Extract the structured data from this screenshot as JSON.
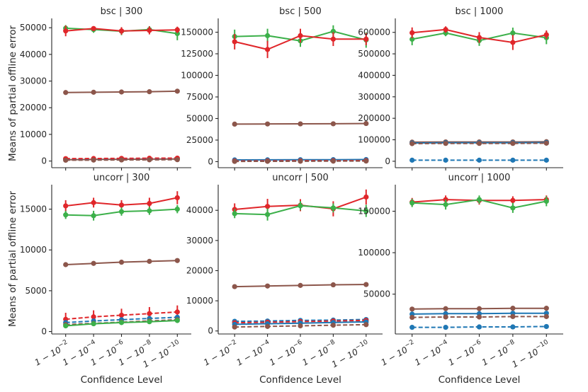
{
  "figure": {
    "ylabel": "Means of partial offline error",
    "xlabel": "Confidence Level"
  },
  "colors": {
    "blue": "#1f77b4",
    "green": "#3cb04a",
    "red": "#e0262a",
    "brown": "#8c564b",
    "axis": "#262626"
  },
  "x_tick_labels": [
    {
      "base": "1 − 10",
      "exp": "−2"
    },
    {
      "base": "1 − 10",
      "exp": "−4"
    },
    {
      "base": "1 − 10",
      "exp": "−6"
    },
    {
      "base": "1 − 10",
      "exp": "−8"
    },
    {
      "base": "1 − 10",
      "exp": "−10"
    }
  ],
  "chart_data": [
    {
      "type": "line",
      "title": "bsc | 300",
      "ylim": [
        -2500,
        53500
      ],
      "yticks": [
        0,
        10000,
        20000,
        30000,
        40000,
        50000
      ],
      "series": [
        {
          "color": "green",
          "style": "solid",
          "values": [
            49800,
            49300,
            48700,
            49300,
            47800
          ],
          "err": [
            1200,
            1200,
            1500,
            1300,
            2500
          ]
        },
        {
          "color": "red",
          "style": "solid",
          "values": [
            48800,
            49700,
            48800,
            49000,
            49200
          ],
          "err": [
            2000,
            900,
            1400,
            1500,
            1200
          ]
        },
        {
          "color": "brown",
          "style": "solid",
          "values": [
            25700,
            25800,
            25900,
            26000,
            26200
          ],
          "err": [
            0,
            0,
            0,
            0,
            0
          ]
        },
        {
          "color": "brown",
          "style": "solid",
          "values": [
            500,
            600,
            650,
            700,
            750
          ],
          "err": [
            0,
            0,
            0,
            0,
            0
          ]
        },
        {
          "color": "blue",
          "style": "dashed",
          "values": [
            700,
            750,
            800,
            850,
            900
          ],
          "err": [
            0,
            0,
            0,
            0,
            0
          ]
        },
        {
          "color": "red",
          "style": "dashed",
          "values": [
            900,
            950,
            1000,
            1050,
            1100
          ],
          "err": [
            0,
            0,
            0,
            0,
            0
          ]
        },
        {
          "color": "brown",
          "style": "dashed",
          "values": [
            300,
            350,
            400,
            450,
            500
          ],
          "err": [
            0,
            0,
            0,
            0,
            0
          ]
        }
      ]
    },
    {
      "type": "line",
      "title": "bsc | 500",
      "ylim": [
        -7000,
        166000
      ],
      "yticks": [
        0,
        25000,
        50000,
        75000,
        100000,
        125000,
        150000
      ],
      "series": [
        {
          "color": "green",
          "style": "solid",
          "values": [
            145000,
            146000,
            140000,
            151000,
            141000
          ],
          "err": [
            8000,
            8000,
            7000,
            7000,
            9000
          ]
        },
        {
          "color": "red",
          "style": "solid",
          "values": [
            139000,
            130000,
            146000,
            142000,
            142000
          ],
          "err": [
            9000,
            10000,
            8000,
            8000,
            7000
          ]
        },
        {
          "color": "brown",
          "style": "solid",
          "values": [
            43500,
            43700,
            43800,
            43900,
            44200
          ],
          "err": [
            0,
            0,
            0,
            0,
            0
          ]
        },
        {
          "color": "blue",
          "style": "solid",
          "values": [
            2000,
            2100,
            2200,
            2300,
            2400
          ],
          "err": [
            0,
            0,
            0,
            0,
            0
          ]
        },
        {
          "color": "blue",
          "style": "dashed",
          "values": [
            1200,
            1300,
            1400,
            1500,
            1600
          ],
          "err": [
            0,
            0,
            0,
            0,
            0
          ]
        },
        {
          "color": "red",
          "style": "dashed",
          "values": [
            800,
            900,
            1000,
            1100,
            1200
          ],
          "err": [
            0,
            0,
            0,
            0,
            0
          ]
        },
        {
          "color": "brown",
          "style": "dashed",
          "values": [
            300,
            400,
            500,
            600,
            700
          ],
          "err": [
            0,
            0,
            0,
            0,
            0
          ]
        }
      ]
    },
    {
      "type": "line",
      "title": "bsc | 1000",
      "ylim": [
        -30000,
        665000
      ],
      "yticks": [
        0,
        100000,
        200000,
        300000,
        400000,
        500000,
        600000
      ],
      "series": [
        {
          "color": "green",
          "style": "solid",
          "values": [
            568000,
            597000,
            562000,
            597000,
            575000
          ],
          "err": [
            28000,
            15000,
            25000,
            25000,
            30000
          ]
        },
        {
          "color": "red",
          "style": "solid",
          "values": [
            598000,
            613000,
            576000,
            553000,
            589000
          ],
          "err": [
            25000,
            15000,
            25000,
            35000,
            20000
          ]
        },
        {
          "color": "brown",
          "style": "solid",
          "values": [
            89000,
            90000,
            90000,
            90000,
            91000
          ],
          "err": [
            0,
            0,
            0,
            0,
            0
          ]
        },
        {
          "color": "blue",
          "style": "solid",
          "values": [
            85000,
            86000,
            86000,
            86000,
            87000
          ],
          "err": [
            0,
            0,
            0,
            0,
            0
          ]
        },
        {
          "color": "brown",
          "style": "dashed",
          "values": [
            82000,
            83000,
            83000,
            83000,
            84000
          ],
          "err": [
            0,
            0,
            0,
            0,
            0
          ]
        },
        {
          "color": "blue",
          "style": "dashed",
          "values": [
            5000,
            5000,
            5000,
            5000,
            5000
          ],
          "err": [
            0,
            0,
            0,
            0,
            0
          ]
        }
      ]
    },
    {
      "type": "line",
      "title": "uncorr | 300",
      "ylim": [
        -300,
        18000
      ],
      "yticks": [
        0,
        5000,
        10000,
        15000
      ],
      "series": [
        {
          "color": "red",
          "style": "solid",
          "values": [
            15400,
            15800,
            15500,
            15700,
            16400
          ],
          "err": [
            700,
            600,
            600,
            700,
            800
          ]
        },
        {
          "color": "green",
          "style": "solid",
          "values": [
            14300,
            14200,
            14700,
            14800,
            15000
          ],
          "err": [
            500,
            600,
            500,
            500,
            500
          ]
        },
        {
          "color": "brown",
          "style": "solid",
          "values": [
            8200,
            8350,
            8500,
            8600,
            8700
          ],
          "err": [
            0,
            0,
            0,
            0,
            0
          ]
        },
        {
          "color": "red",
          "style": "dashed",
          "values": [
            1500,
            1800,
            2000,
            2200,
            2400
          ],
          "err": [
            800,
            800,
            800,
            800,
            800
          ]
        },
        {
          "color": "blue",
          "style": "dashed",
          "values": [
            1100,
            1300,
            1450,
            1600,
            1750
          ],
          "err": [
            0,
            0,
            0,
            0,
            0
          ]
        },
        {
          "color": "brown",
          "style": "dashed",
          "values": [
            850,
            1000,
            1150,
            1300,
            1450
          ],
          "err": [
            0,
            0,
            0,
            0,
            0
          ]
        },
        {
          "color": "green",
          "style": "solid",
          "values": [
            700,
            950,
            1100,
            1200,
            1350
          ],
          "err": [
            0,
            0,
            0,
            0,
            0
          ]
        }
      ]
    },
    {
      "type": "line",
      "title": "uncorr | 500",
      "ylim": [
        -1000,
        48500
      ],
      "yticks": [
        0,
        10000,
        20000,
        30000,
        40000
      ],
      "series": [
        {
          "color": "red",
          "style": "solid",
          "values": [
            40300,
            41300,
            41700,
            40500,
            44400
          ],
          "err": [
            2000,
            2500,
            2000,
            2500,
            2500
          ]
        },
        {
          "color": "green",
          "style": "solid",
          "values": [
            38900,
            38600,
            41500,
            40800,
            39800
          ],
          "err": [
            1500,
            2000,
            1500,
            1500,
            2000
          ]
        },
        {
          "color": "brown",
          "style": "solid",
          "values": [
            14700,
            14900,
            15100,
            15300,
            15400
          ],
          "err": [
            0,
            0,
            0,
            0,
            0
          ]
        },
        {
          "color": "blue",
          "style": "dashed",
          "values": [
            3200,
            3300,
            3500,
            3600,
            3800
          ],
          "err": [
            0,
            0,
            0,
            0,
            0
          ]
        },
        {
          "color": "red",
          "style": "dashed",
          "values": [
            2700,
            2900,
            3100,
            3300,
            3500
          ],
          "err": [
            700,
            700,
            700,
            700,
            700
          ]
        },
        {
          "color": "blue",
          "style": "solid",
          "values": [
            2200,
            2400,
            2600,
            2800,
            3000
          ],
          "err": [
            0,
            0,
            0,
            0,
            0
          ]
        },
        {
          "color": "brown",
          "style": "dashed",
          "values": [
            1300,
            1500,
            1700,
            1900,
            2100
          ],
          "err": [
            0,
            0,
            0,
            0,
            0
          ]
        }
      ]
    },
    {
      "type": "line",
      "title": "uncorr | 1000",
      "ylim": [
        2000,
        182000
      ],
      "yticks": [
        50000,
        100000,
        150000
      ],
      "series": [
        {
          "color": "red",
          "style": "solid",
          "values": [
            161000,
            164000,
            163000,
            163000,
            164000
          ],
          "err": [
            5000,
            5000,
            5000,
            5000,
            5000
          ]
        },
        {
          "color": "green",
          "style": "solid",
          "values": [
            160000,
            158000,
            164000,
            154000,
            162000
          ],
          "err": [
            5000,
            6000,
            5000,
            6000,
            6000
          ]
        },
        {
          "color": "brown",
          "style": "solid",
          "values": [
            32000,
            32500,
            32500,
            33000,
            33000
          ],
          "err": [
            0,
            0,
            0,
            0,
            0
          ]
        },
        {
          "color": "blue",
          "style": "solid",
          "values": [
            26000,
            26500,
            26500,
            27000,
            27000
          ],
          "err": [
            0,
            0,
            0,
            0,
            0
          ]
        },
        {
          "color": "brown",
          "style": "dashed",
          "values": [
            22000,
            22500,
            22500,
            23000,
            23000
          ],
          "err": [
            0,
            0,
            0,
            0,
            0
          ]
        },
        {
          "color": "blue",
          "style": "dashed",
          "values": [
            10000,
            10000,
            10500,
            10500,
            11000
          ],
          "err": [
            0,
            0,
            0,
            0,
            0
          ]
        }
      ]
    }
  ]
}
